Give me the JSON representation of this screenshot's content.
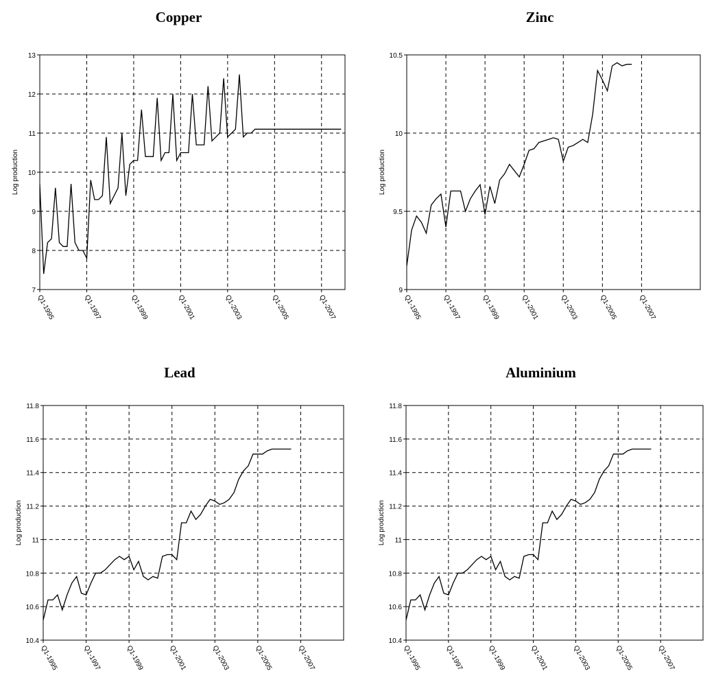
{
  "chart_data": [
    {
      "type": "line",
      "title": "Copper",
      "ylabel": "Log production",
      "xlabel": "",
      "ylim": [
        7,
        13
      ],
      "yticks": [
        "7",
        "8",
        "9",
        "10",
        "11",
        "12",
        "13"
      ],
      "xlim": [
        0,
        78
      ],
      "xticks": [
        {
          "at": 0,
          "label": "Q1-1995"
        },
        {
          "at": 12,
          "label": "Q1-1997"
        },
        {
          "at": 24,
          "label": "Q1-1999"
        },
        {
          "at": 36,
          "label": "Q1-2001"
        },
        {
          "at": 48,
          "label": "Q1-2003"
        },
        {
          "at": 60,
          "label": "Q1-2005"
        },
        {
          "at": 72,
          "label": "Q1-2007"
        }
      ],
      "grid": true,
      "x": [
        0,
        1,
        2,
        3,
        4,
        5,
        6,
        7,
        8,
        9,
        10,
        11,
        12,
        13,
        14,
        15,
        16,
        17,
        18,
        19,
        20,
        21,
        22,
        23,
        24,
        25,
        26,
        27,
        28,
        29,
        30,
        31,
        32,
        33,
        34,
        35,
        36,
        37,
        38,
        39,
        40,
        41,
        42,
        43,
        44,
        45,
        46,
        47,
        48,
        49,
        50,
        51,
        52,
        53,
        54,
        55,
        56,
        57,
        58,
        59,
        60,
        61,
        62,
        63,
        64,
        65,
        66,
        67,
        68,
        69,
        70,
        71,
        72,
        73,
        74,
        75,
        76,
        77
      ],
      "values": [
        9.7,
        7.4,
        8.2,
        8.3,
        9.6,
        8.2,
        8.1,
        8.1,
        9.7,
        8.2,
        8.0,
        8.0,
        7.8,
        9.8,
        9.3,
        9.3,
        9.4,
        10.9,
        9.2,
        9.4,
        9.6,
        11.0,
        9.4,
        10.2,
        10.3,
        10.3,
        11.6,
        10.4,
        10.4,
        10.4,
        11.9,
        10.3,
        10.5,
        10.5,
        12.0,
        10.3,
        10.5,
        10.5,
        10.5,
        12.0,
        10.7,
        10.7,
        10.7,
        12.2,
        10.8,
        10.9,
        11.0,
        12.4,
        10.9,
        11.0,
        11.1,
        12.5,
        10.9,
        11.0,
        11.0,
        11.1,
        11.1,
        11.1,
        11.1,
        11.1,
        11.1,
        11.1,
        11.1,
        11.1,
        11.1,
        11.1,
        11.1,
        11.1,
        11.1,
        11.1,
        11.1,
        11.1,
        11.1,
        11.1,
        11.1,
        11.1,
        11.1,
        11.1
      ]
    },
    {
      "type": "line",
      "title": "Zinc",
      "ylabel": "Log production",
      "xlabel": "",
      "ylim": [
        9,
        10.5
      ],
      "yticks": [
        "9",
        "9.5",
        "10",
        "10.5"
      ],
      "xlim": [
        0,
        60
      ],
      "xticks": [
        {
          "at": 0,
          "label": "Q1-1995"
        },
        {
          "at": 8,
          "label": "Q1-1997"
        },
        {
          "at": 16,
          "label": "Q1-1999"
        },
        {
          "at": 24,
          "label": "Q1-2001"
        },
        {
          "at": 32,
          "label": "Q1-2003"
        },
        {
          "at": 40,
          "label": "Q1-2005"
        },
        {
          "at": 48,
          "label": "Q1-2007"
        }
      ],
      "grid": true,
      "x": [
        0,
        1,
        2,
        3,
        4,
        5,
        6,
        7,
        8,
        9,
        10,
        11,
        12,
        13,
        14,
        15,
        16,
        17,
        18,
        19,
        20,
        21,
        22,
        23,
        24,
        25,
        26,
        27,
        28,
        29,
        30,
        31,
        32,
        33,
        34,
        35,
        36,
        37,
        38,
        39,
        40,
        41,
        42,
        43,
        44,
        45,
        46
      ],
      "values": [
        9.15,
        9.38,
        9.47,
        9.43,
        9.36,
        9.54,
        9.58,
        9.61,
        9.4,
        9.63,
        9.63,
        9.63,
        9.5,
        9.58,
        9.63,
        9.67,
        9.48,
        9.66,
        9.55,
        9.7,
        9.74,
        9.8,
        9.76,
        9.72,
        9.8,
        9.89,
        9.9,
        9.94,
        9.95,
        9.96,
        9.97,
        9.96,
        9.82,
        9.91,
        9.92,
        9.94,
        9.96,
        9.94,
        10.12,
        10.4,
        10.34,
        10.27,
        10.43,
        10.45,
        10.43,
        10.44,
        10.44
      ]
    },
    {
      "type": "line",
      "title": "Lead",
      "ylabel": "Log production",
      "xlabel": "",
      "ylim": [
        10.4,
        11.8
      ],
      "yticks": [
        "10.4",
        "10.6",
        "10.8",
        "11",
        "11.2",
        "11.4",
        "11.6",
        "11.8"
      ],
      "xlim": [
        0,
        63
      ],
      "xticks": [
        {
          "at": 0,
          "label": "Q1-1995"
        },
        {
          "at": 9,
          "label": "Q1-1997"
        },
        {
          "at": 18,
          "label": "Q1-1999"
        },
        {
          "at": 27,
          "label": "Q1-2001"
        },
        {
          "at": 36,
          "label": "Q1-2003"
        },
        {
          "at": 45,
          "label": "Q1-2005"
        },
        {
          "at": 54,
          "label": "Q1-2007"
        }
      ],
      "grid": true,
      "x": [
        0,
        1,
        2,
        3,
        4,
        5,
        6,
        7,
        8,
        9,
        10,
        11,
        12,
        13,
        14,
        15,
        16,
        17,
        18,
        19,
        20,
        21,
        22,
        23,
        24,
        25,
        26,
        27,
        28,
        29,
        30,
        31,
        32,
        33,
        34,
        35,
        36,
        37,
        38,
        39,
        40,
        41,
        42,
        43,
        44,
        45,
        46,
        47,
        48,
        49,
        50,
        51,
        52
      ],
      "values": [
        10.52,
        10.64,
        10.64,
        10.67,
        10.58,
        10.67,
        10.74,
        10.78,
        10.68,
        10.67,
        10.74,
        10.8,
        10.8,
        10.82,
        10.85,
        10.88,
        10.9,
        10.88,
        10.9,
        10.82,
        10.87,
        10.78,
        10.76,
        10.78,
        10.77,
        10.9,
        10.91,
        10.91,
        10.88,
        11.1,
        11.1,
        11.17,
        11.12,
        11.15,
        11.2,
        11.24,
        11.23,
        11.21,
        11.22,
        11.24,
        11.28,
        11.36,
        11.41,
        11.44,
        11.51,
        11.51,
        11.51,
        11.53,
        11.54,
        11.54,
        11.54,
        11.54,
        11.54
      ]
    },
    {
      "type": "line",
      "title": "Aluminium",
      "ylabel": "Log production",
      "xlabel": "",
      "ylim": [
        10.4,
        11.8
      ],
      "yticks": [
        "10.4",
        "10.6",
        "10.8",
        "11",
        "11.2",
        "11.4",
        "11.6",
        "11.8"
      ],
      "xlim": [
        0,
        63
      ],
      "xticks": [
        {
          "at": 0,
          "label": "Q1-1995"
        },
        {
          "at": 9,
          "label": "Q1-1997"
        },
        {
          "at": 18,
          "label": "Q1-1999"
        },
        {
          "at": 27,
          "label": "Q1-2001"
        },
        {
          "at": 36,
          "label": "Q1-2003"
        },
        {
          "at": 45,
          "label": "Q1-2005"
        },
        {
          "at": 54,
          "label": "Q1-2007"
        }
      ],
      "grid": true,
      "x": [
        0,
        1,
        2,
        3,
        4,
        5,
        6,
        7,
        8,
        9,
        10,
        11,
        12,
        13,
        14,
        15,
        16,
        17,
        18,
        19,
        20,
        21,
        22,
        23,
        24,
        25,
        26,
        27,
        28,
        29,
        30,
        31,
        32,
        33,
        34,
        35,
        36,
        37,
        38,
        39,
        40,
        41,
        42,
        43,
        44,
        45,
        46,
        47,
        48,
        49,
        50,
        51,
        52
      ],
      "values": [
        10.52,
        10.64,
        10.64,
        10.67,
        10.58,
        10.67,
        10.74,
        10.78,
        10.68,
        10.67,
        10.74,
        10.8,
        10.8,
        10.82,
        10.85,
        10.88,
        10.9,
        10.88,
        10.9,
        10.82,
        10.87,
        10.78,
        10.76,
        10.78,
        10.77,
        10.9,
        10.91,
        10.91,
        10.88,
        11.1,
        11.1,
        11.17,
        11.12,
        11.15,
        11.2,
        11.24,
        11.23,
        11.21,
        11.22,
        11.24,
        11.28,
        11.36,
        11.41,
        11.44,
        11.51,
        11.51,
        11.51,
        11.53,
        11.54,
        11.54,
        11.54,
        11.54,
        11.54
      ]
    }
  ]
}
